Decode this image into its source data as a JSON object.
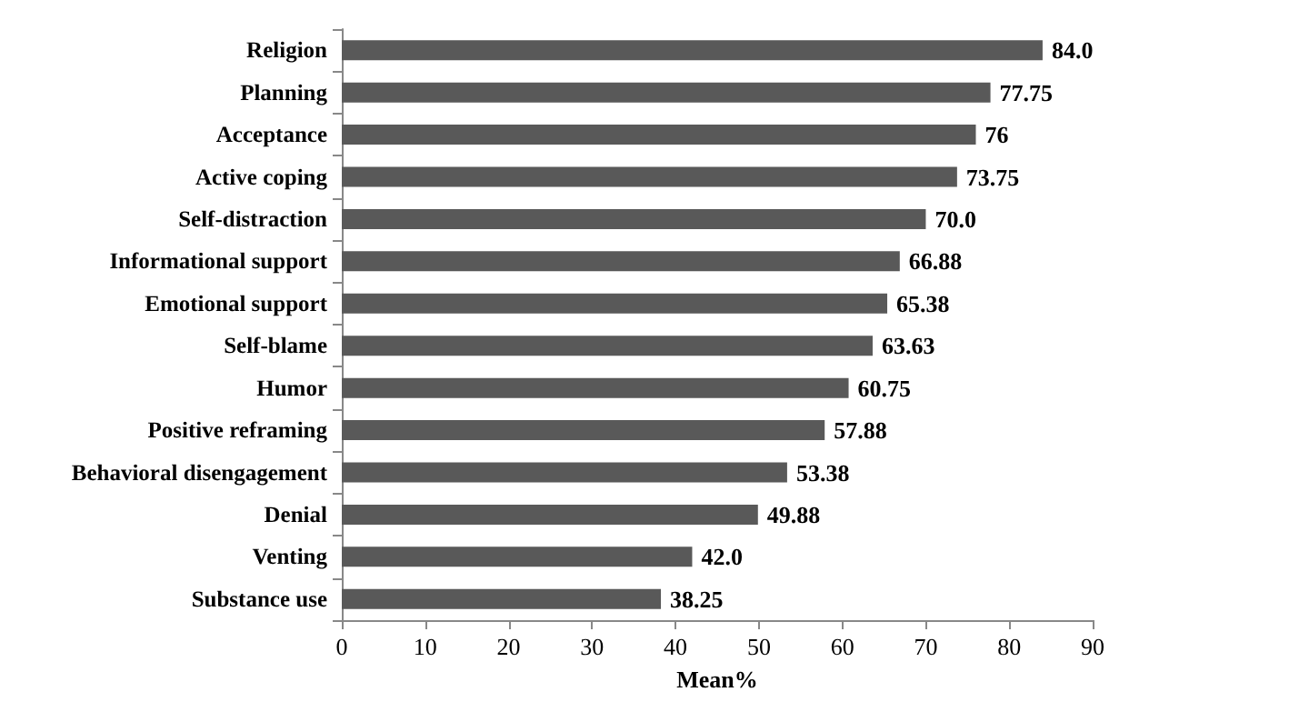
{
  "chart_data": {
    "type": "bar",
    "orientation": "horizontal",
    "xlabel": "Mean%",
    "categories": [
      "Religion",
      "Planning",
      "Acceptance",
      "Active coping",
      "Self-distraction",
      "Informational support",
      "Emotional support",
      "Self-blame",
      "Humor",
      "Positive reframing",
      "Behavioral disengagement",
      "Denial",
      "Venting",
      "Substance use"
    ],
    "values": [
      84.0,
      77.75,
      76,
      73.75,
      70.0,
      66.88,
      65.38,
      63.63,
      60.75,
      57.88,
      53.38,
      49.88,
      42.0,
      38.25
    ],
    "value_labels": [
      "84.0",
      "77.75",
      "76",
      "73.75",
      "70.0",
      "66.88",
      "65.38",
      "63.63",
      "60.75",
      "57.88",
      "53.38",
      "49.88",
      "42.0",
      "38.25"
    ],
    "color": "#595959",
    "xlim": [
      0,
      90
    ],
    "xticks": [
      0,
      10,
      20,
      30,
      40,
      50,
      60,
      70,
      80,
      90
    ]
  }
}
